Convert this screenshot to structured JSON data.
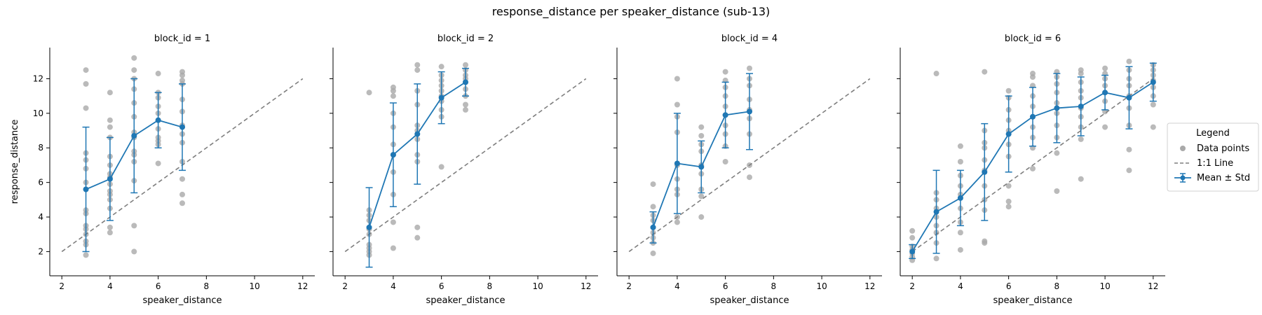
{
  "title": "response_distance per speaker_distance (sub-13)",
  "colors": {
    "points": "#a9a9a9",
    "mean": "#1f77b4",
    "identity": "#7f7f7f"
  },
  "legend": {
    "title": "Legend",
    "placement": "right",
    "entries": [
      {
        "label": "Data points",
        "kind": "points"
      },
      {
        "label": "1:1 Line",
        "kind": "identity"
      },
      {
        "label": "Mean ± Std",
        "kind": "mean"
      }
    ]
  },
  "chart_data": [
    {
      "type": "scatter",
      "title": "block_id = 1",
      "xlabel": "speaker_distance",
      "ylabel": "response_distance",
      "xlim": [
        1.5,
        12.5
      ],
      "ylim": [
        0.6,
        13.8
      ],
      "xticks": [
        2,
        4,
        6,
        8,
        10,
        12
      ],
      "yticks": [
        2,
        4,
        6,
        8,
        10,
        12
      ],
      "identity_line": [
        2,
        12
      ],
      "mean": {
        "x": [
          3,
          4,
          5,
          6,
          7
        ],
        "y": [
          5.6,
          6.2,
          8.7,
          9.6,
          9.2
        ],
        "std": [
          3.6,
          2.4,
          3.3,
          1.6,
          2.5
        ]
      },
      "points": {
        "3": [
          1.8,
          2.4,
          2.6,
          3.0,
          3.3,
          3.5,
          4.2,
          4.4,
          6.0,
          6.8,
          7.3,
          7.7,
          10.3,
          11.7,
          12.5
        ],
        "4": [
          3.1,
          3.4,
          4.5,
          5.0,
          5.3,
          5.5,
          5.9,
          6.3,
          6.5,
          7.0,
          7.5,
          8.6,
          9.2,
          9.6,
          11.2
        ],
        "5": [
          2.0,
          3.5,
          6.1,
          7.2,
          7.6,
          7.8,
          8.6,
          8.9,
          9.8,
          10.6,
          11.4,
          12.0,
          12.5,
          13.2
        ],
        "6": [
          7.1,
          8.2,
          8.4,
          8.6,
          9.1,
          9.6,
          10.0,
          10.4,
          10.9,
          11.2,
          12.3
        ],
        "7": [
          4.8,
          5.3,
          6.2,
          7.2,
          8.3,
          8.8,
          9.3,
          10.1,
          10.8,
          11.7,
          11.9,
          12.2,
          12.4
        ]
      }
    },
    {
      "type": "scatter",
      "title": "block_id = 2",
      "xlabel": "speaker_distance",
      "ylabel": "",
      "xlim": [
        1.5,
        12.5
      ],
      "ylim": [
        0.6,
        13.8
      ],
      "xticks": [
        2,
        4,
        6,
        8,
        10,
        12
      ],
      "yticks": [
        2,
        4,
        6,
        8,
        10,
        12
      ],
      "identity_line": [
        2,
        12
      ],
      "mean": {
        "x": [
          3,
          4,
          5,
          6,
          7
        ],
        "y": [
          3.4,
          7.6,
          8.8,
          10.9,
          11.8
        ],
        "std": [
          2.3,
          3.0,
          2.9,
          1.5,
          0.8
        ]
      },
      "points": {
        "3": [
          1.8,
          2.0,
          2.2,
          2.4,
          3.0,
          3.3,
          3.8,
          4.1,
          4.4,
          11.2
        ],
        "4": [
          2.2,
          3.7,
          5.3,
          6.6,
          7.6,
          8.2,
          9.2,
          10.0,
          11.0,
          11.3,
          11.5
        ],
        "5": [
          2.8,
          3.4,
          7.2,
          7.6,
          8.5,
          9.0,
          9.3,
          10.5,
          11.3,
          12.5,
          12.8
        ],
        "6": [
          6.9,
          9.8,
          10.2,
          10.7,
          11.0,
          11.3,
          11.6,
          11.9,
          12.2,
          12.7
        ],
        "7": [
          10.2,
          10.5,
          11.0,
          11.4,
          11.8,
          12.0,
          12.2,
          12.5,
          12.8
        ]
      }
    },
    {
      "type": "scatter",
      "title": "block_id = 4",
      "xlabel": "speaker_distance",
      "ylabel": "",
      "xlim": [
        1.5,
        12.5
      ],
      "ylim": [
        0.6,
        13.8
      ],
      "xticks": [
        2,
        4,
        6,
        8,
        10,
        12
      ],
      "yticks": [
        2,
        4,
        6,
        8,
        10,
        12
      ],
      "identity_line": [
        2,
        12
      ],
      "mean": {
        "x": [
          3,
          4,
          5,
          6,
          7
        ],
        "y": [
          3.4,
          7.1,
          6.9,
          9.9,
          10.1
        ],
        "std": [
          0.9,
          2.9,
          1.5,
          1.9,
          2.2
        ]
      },
      "points": {
        "3": [
          1.9,
          2.5,
          2.8,
          3.1,
          3.4,
          3.8,
          4.1,
          4.6,
          5.9
        ],
        "4": [
          3.7,
          4.0,
          5.3,
          5.6,
          6.2,
          7.0,
          8.9,
          9.8,
          10.5,
          12.0
        ],
        "5": [
          4.0,
          5.2,
          5.6,
          6.5,
          7.0,
          7.8,
          8.2,
          8.7,
          9.2
        ],
        "6": [
          7.2,
          8.1,
          8.8,
          9.3,
          9.9,
          10.4,
          11.0,
          11.5,
          11.9,
          12.4
        ],
        "7": [
          6.3,
          7.0,
          8.8,
          9.7,
          10.2,
          10.8,
          11.6,
          12.0,
          12.6
        ]
      }
    },
    {
      "type": "scatter",
      "title": "block_id = 6",
      "xlabel": "speaker_distance",
      "ylabel": "",
      "xlim": [
        1.5,
        12.5
      ],
      "ylim": [
        0.6,
        13.8
      ],
      "xticks": [
        2,
        4,
        6,
        8,
        10,
        12
      ],
      "yticks": [
        2,
        4,
        6,
        8,
        10,
        12
      ],
      "identity_line": [
        2,
        12
      ],
      "mean": {
        "x": [
          2,
          3,
          4,
          5,
          6,
          7,
          8,
          9,
          10,
          11,
          12
        ],
        "y": [
          2.0,
          4.3,
          5.1,
          6.6,
          8.8,
          9.8,
          10.3,
          10.4,
          11.2,
          10.9,
          11.8
        ],
        "std": [
          0.4,
          2.4,
          1.6,
          2.8,
          2.2,
          1.7,
          2.0,
          1.7,
          1.0,
          1.8,
          1.1
        ]
      },
      "points": {
        "2": [
          1.5,
          1.7,
          1.9,
          2.1,
          2.3,
          2.8,
          3.2
        ],
        "3": [
          1.6,
          2.5,
          3.1,
          3.5,
          4.0,
          4.5,
          5.0,
          5.4,
          12.3
        ],
        "4": [
          2.1,
          3.1,
          3.7,
          4.5,
          5.3,
          5.8,
          6.4,
          7.2,
          8.1
        ],
        "5": [
          2.5,
          2.6,
          4.4,
          5.0,
          5.8,
          6.7,
          7.3,
          8.0,
          8.3,
          9.0,
          12.4
        ],
        "6": [
          4.6,
          4.9,
          5.8,
          7.5,
          8.2,
          9.0,
          9.6,
          10.2,
          10.9,
          11.3
        ],
        "7": [
          6.8,
          8.0,
          8.6,
          9.2,
          9.8,
          10.4,
          11.0,
          11.6,
          12.1,
          12.3
        ],
        "8": [
          5.5,
          7.7,
          8.6,
          9.3,
          10.0,
          10.6,
          11.2,
          11.7,
          12.1,
          12.4
        ],
        "9": [
          6.2,
          8.5,
          9.2,
          9.8,
          10.3,
          10.9,
          11.3,
          11.8,
          12.3,
          12.5
        ],
        "10": [
          9.2,
          10.1,
          10.7,
          11.2,
          11.6,
          12.0,
          12.3,
          12.6
        ],
        "11": [
          6.7,
          7.9,
          9.3,
          10.3,
          11.0,
          11.6,
          12.0,
          12.5,
          13.0
        ],
        "12": [
          9.2,
          10.5,
          11.0,
          11.5,
          11.9,
          12.2,
          12.5,
          12.8
        ]
      }
    }
  ]
}
